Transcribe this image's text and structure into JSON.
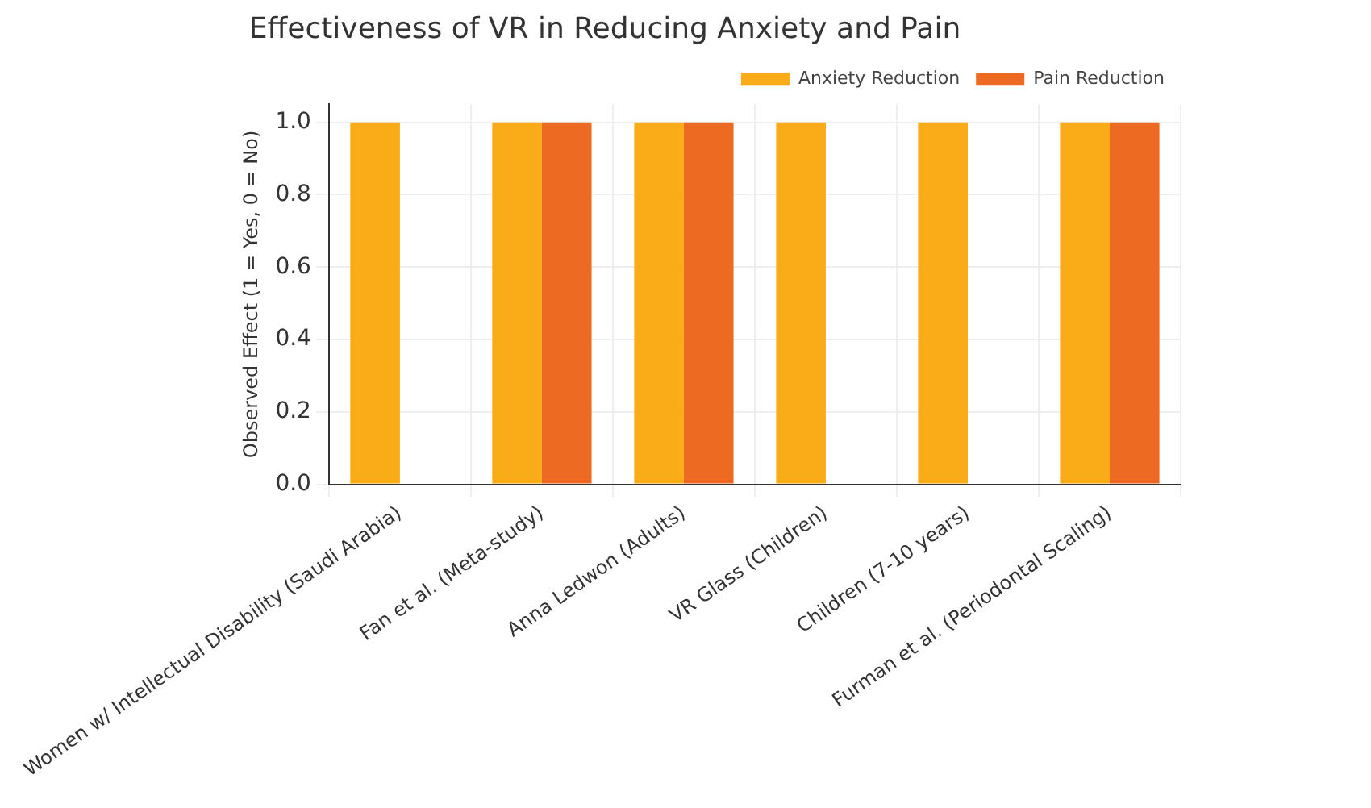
{
  "chart_data": {
    "type": "bar",
    "title": "Effectiveness of VR in Reducing Anxiety and Pain",
    "ylabel": "Observed Effect (1 = Yes, 0 = No)",
    "categories": [
      "Women w/ Intellectual Disability (Saudi Arabia)",
      "Fan et al. (Meta-study)",
      "Anna Ledwon (Adults)",
      "VR Glass (Children)",
      "Children (7-10 years)",
      "Furman et al. (Periodontal Scaling)"
    ],
    "series": [
      {
        "name": "Anxiety Reduction",
        "color": "#f9ac17",
        "values": [
          1,
          1,
          1,
          1,
          1,
          1
        ]
      },
      {
        "name": "Pain Reduction",
        "color": "#ec6a22",
        "values": [
          0,
          1,
          1,
          0,
          0,
          1
        ]
      }
    ],
    "ylim": [
      0,
      1.05
    ],
    "yticks": [
      {
        "value": 0,
        "label": "0.0"
      },
      {
        "value": 0.2,
        "label": "0.2"
      },
      {
        "value": 0.4,
        "label": "0.4"
      },
      {
        "value": 0.6,
        "label": "0.6"
      },
      {
        "value": 0.8,
        "label": "0.8"
      },
      {
        "value": 1,
        "label": "1.0"
      }
    ],
    "grid": true,
    "legend": "top right"
  }
}
